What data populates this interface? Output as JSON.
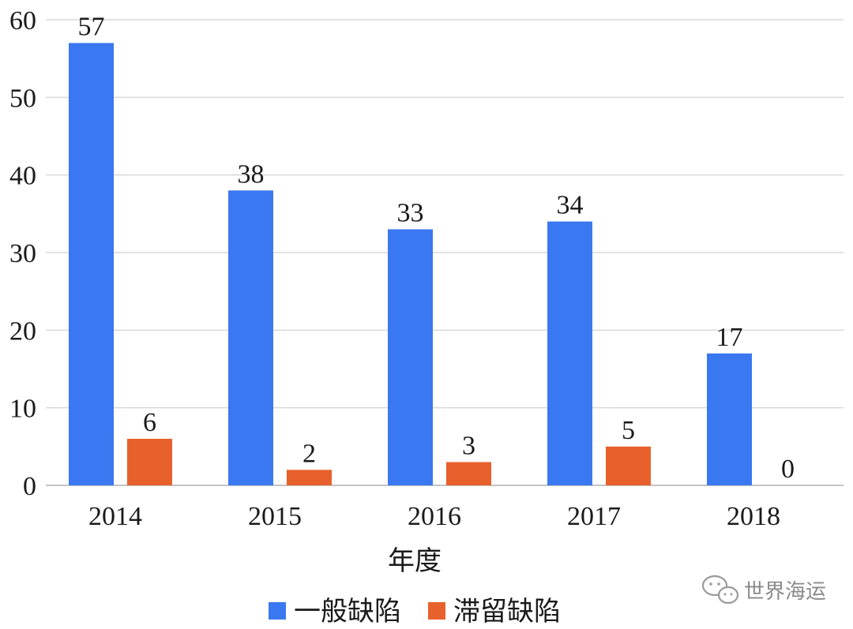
{
  "chart_data": {
    "type": "bar",
    "categories": [
      "2014",
      "2015",
      "2016",
      "2017",
      "2018"
    ],
    "series": [
      {
        "name": "一般缺陷",
        "values": [
          57,
          38,
          33,
          34,
          17
        ],
        "color": "#3a78f2"
      },
      {
        "name": "滞留缺陷",
        "values": [
          6,
          2,
          3,
          5,
          0
        ],
        "color": "#e8602c"
      }
    ],
    "title": "",
    "xlabel": "年度",
    "ylabel": "",
    "ylim": [
      0,
      60
    ],
    "yticks": [
      0,
      10,
      20,
      30,
      40,
      50,
      60
    ],
    "grid": true,
    "legend_position": "bottom"
  },
  "watermark": {
    "text": "世界海运",
    "icon": "wechat-icon"
  },
  "colors": {
    "grid": "#d9d9d9",
    "axis": "#b0b0b0"
  }
}
